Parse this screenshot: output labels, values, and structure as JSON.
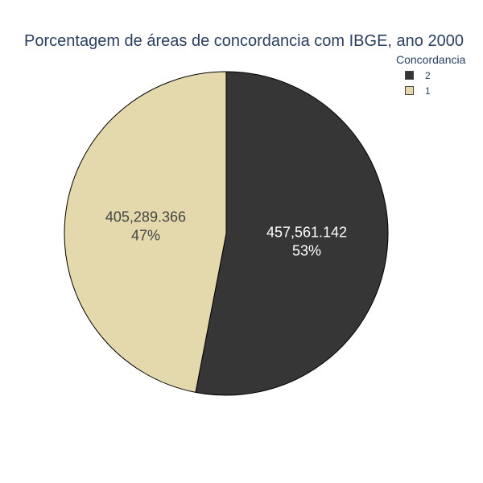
{
  "chart_data": {
    "type": "pie",
    "title": "Porcentagem de áreas de concordancia com IBGE, ano 2000",
    "legend_title": "Concordancia",
    "legend_position": "top-right",
    "slices": [
      {
        "label": "2",
        "value": 457561.142,
        "value_text": "457,561.142",
        "percent_text": "53%",
        "color": "#363636",
        "text_color": "#ffffff"
      },
      {
        "label": "1",
        "value": 405289.366,
        "value_text": "405,289.366",
        "percent_text": "47%",
        "color": "#e3d9ac",
        "text_color": "#444444"
      }
    ]
  }
}
